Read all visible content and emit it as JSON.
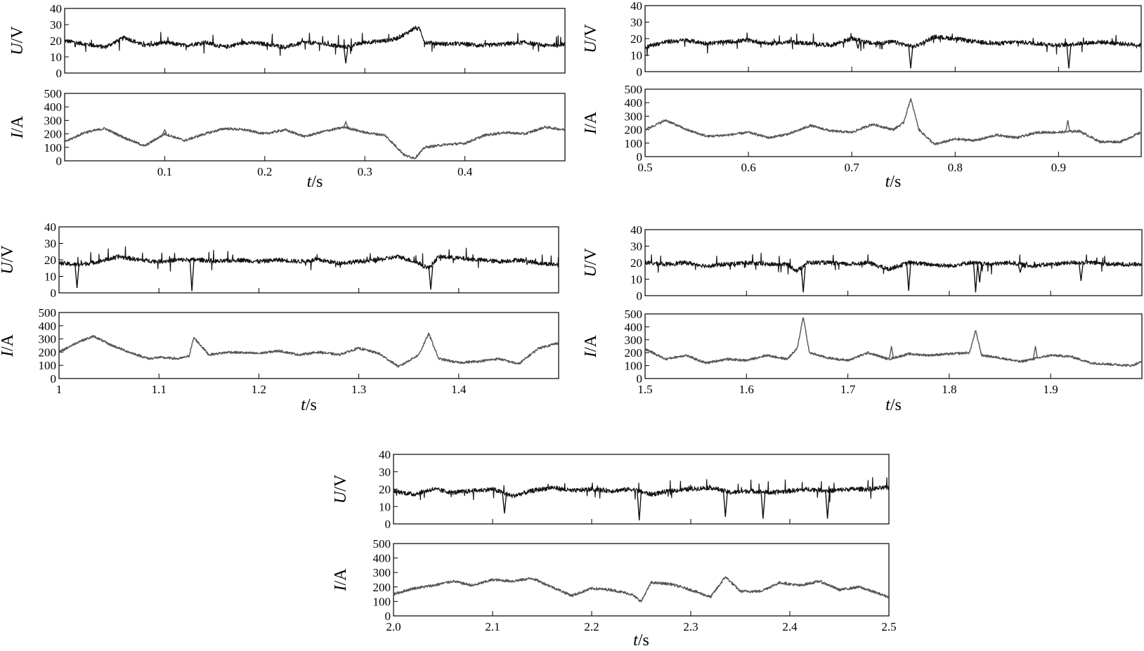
{
  "chart_data": [
    {
      "type": "line",
      "panel": "a",
      "x_range": [
        0,
        0.5
      ],
      "x_ticks": [
        "0.1",
        "0.2",
        "0.3",
        "0.4"
      ],
      "x_tick_values": [
        0.1,
        0.2,
        0.3,
        0.4
      ],
      "xlabel": "t/s",
      "voltage": {
        "ylabel": "U/V",
        "ylim": [
          0,
          40
        ],
        "yticks": [
          "0",
          "10",
          "20",
          "30",
          "40"
        ],
        "ytick_values": [
          0,
          10,
          20,
          30,
          40
        ],
        "x": [
          0,
          0.02,
          0.04,
          0.06,
          0.08,
          0.1,
          0.12,
          0.14,
          0.16,
          0.18,
          0.2,
          0.22,
          0.24,
          0.26,
          0.28,
          0.3,
          0.32,
          0.33,
          0.34,
          0.35,
          0.355,
          0.36,
          0.38,
          0.4,
          0.42,
          0.44,
          0.46,
          0.48,
          0.5
        ],
        "y": [
          20,
          18,
          16,
          22,
          17,
          19,
          17,
          19,
          16,
          19,
          18,
          16,
          19,
          18,
          16,
          19,
          20,
          21,
          24,
          28,
          27,
          19,
          18,
          18,
          17,
          18,
          19,
          17,
          18
        ],
        "dips": [
          [
            0.281,
            6
          ],
          [
            0.412,
            16
          ],
          [
            0.092,
            17
          ]
        ]
      },
      "current": {
        "ylabel": "I/A",
        "ylim": [
          0,
          500
        ],
        "yticks": [
          "0",
          "100",
          "200",
          "300",
          "400",
          "500"
        ],
        "ytick_values": [
          0,
          100,
          200,
          300,
          400,
          500
        ],
        "x": [
          0,
          0.02,
          0.04,
          0.06,
          0.08,
          0.1,
          0.12,
          0.14,
          0.16,
          0.18,
          0.2,
          0.22,
          0.24,
          0.26,
          0.28,
          0.3,
          0.32,
          0.34,
          0.35,
          0.36,
          0.38,
          0.4,
          0.42,
          0.44,
          0.46,
          0.48,
          0.5
        ],
        "y": [
          140,
          210,
          240,
          170,
          110,
          200,
          150,
          200,
          240,
          230,
          200,
          230,
          180,
          220,
          250,
          210,
          190,
          40,
          20,
          100,
          120,
          130,
          190,
          210,
          200,
          250,
          230
        ],
        "peaks": [
          [
            0.281,
            290
          ],
          [
            0.1,
            230
          ]
        ]
      }
    },
    {
      "type": "line",
      "panel": "b",
      "x_range": [
        0.5,
        0.98
      ],
      "x_ticks": [
        "0.5",
        "0.6",
        "0.7",
        "0.8",
        "0.9"
      ],
      "x_tick_values": [
        0.5,
        0.6,
        0.7,
        0.8,
        0.9
      ],
      "xlabel": "t/s",
      "voltage": {
        "ylabel": "U/V",
        "ylim": [
          0,
          40
        ],
        "yticks": [
          "0",
          "10",
          "20",
          "30",
          "40"
        ],
        "ytick_values": [
          0,
          10,
          20,
          30,
          40
        ],
        "x": [
          0.5,
          0.52,
          0.54,
          0.56,
          0.58,
          0.6,
          0.62,
          0.64,
          0.66,
          0.68,
          0.7,
          0.72,
          0.74,
          0.76,
          0.78,
          0.8,
          0.82,
          0.84,
          0.86,
          0.88,
          0.9,
          0.92,
          0.94,
          0.96,
          0.98
        ],
        "y": [
          15,
          18,
          19,
          17,
          18,
          19,
          17,
          18,
          17,
          16,
          20,
          17,
          18,
          15,
          21,
          20,
          18,
          17,
          18,
          17,
          16,
          17,
          18,
          17,
          16
        ],
        "dips": [
          [
            0.757,
            2
          ],
          [
            0.91,
            2
          ],
          [
            0.706,
            14
          ]
        ]
      },
      "current": {
        "ylabel": "I/A",
        "ylim": [
          0,
          500
        ],
        "yticks": [
          "0",
          "100",
          "200",
          "300",
          "400",
          "500"
        ],
        "ytick_values": [
          0,
          100,
          200,
          300,
          400,
          500
        ],
        "x": [
          0.5,
          0.52,
          0.54,
          0.56,
          0.58,
          0.6,
          0.62,
          0.64,
          0.66,
          0.68,
          0.7,
          0.72,
          0.74,
          0.75,
          0.757,
          0.765,
          0.78,
          0.8,
          0.82,
          0.84,
          0.86,
          0.88,
          0.9,
          0.92,
          0.94,
          0.96,
          0.98
        ],
        "y": [
          200,
          270,
          200,
          150,
          160,
          180,
          140,
          170,
          230,
          190,
          180,
          240,
          200,
          250,
          430,
          200,
          90,
          130,
          120,
          160,
          140,
          180,
          180,
          190,
          110,
          110,
          180
        ],
        "peaks": [
          [
            0.909,
            270
          ]
        ]
      }
    },
    {
      "type": "line",
      "panel": "c",
      "x_range": [
        1.0,
        1.5
      ],
      "x_ticks": [
        "1",
        "1.1",
        "1.2",
        "1.3",
        "1.4"
      ],
      "x_tick_values": [
        1.0,
        1.1,
        1.2,
        1.3,
        1.4
      ],
      "xlabel": "t/s",
      "voltage": {
        "ylabel": "U/V",
        "ylim": [
          0,
          40
        ],
        "yticks": [
          "0",
          "10",
          "20",
          "30",
          "40"
        ],
        "ytick_values": [
          0,
          10,
          20,
          30,
          40
        ],
        "x": [
          1.0,
          1.02,
          1.04,
          1.06,
          1.08,
          1.1,
          1.12,
          1.14,
          1.16,
          1.18,
          1.2,
          1.22,
          1.24,
          1.26,
          1.28,
          1.3,
          1.32,
          1.34,
          1.36,
          1.37,
          1.38,
          1.4,
          1.42,
          1.44,
          1.46,
          1.48,
          1.5
        ],
        "y": [
          18,
          17,
          19,
          22,
          20,
          19,
          20,
          20,
          19,
          20,
          19,
          20,
          19,
          20,
          18,
          19,
          20,
          22,
          18,
          15,
          22,
          21,
          20,
          19,
          20,
          18,
          17
        ],
        "dips": [
          [
            1.018,
            3
          ],
          [
            1.133,
            1
          ],
          [
            1.372,
            2
          ]
        ]
      },
      "current": {
        "ylabel": "I/A",
        "ylim": [
          0,
          500
        ],
        "yticks": [
          "0",
          "100",
          "200",
          "300",
          "400",
          "500"
        ],
        "ytick_values": [
          0,
          100,
          200,
          300,
          400,
          500
        ],
        "x": [
          1.0,
          1.02,
          1.035,
          1.05,
          1.07,
          1.09,
          1.1,
          1.12,
          1.13,
          1.135,
          1.15,
          1.17,
          1.2,
          1.22,
          1.24,
          1.26,
          1.28,
          1.3,
          1.32,
          1.34,
          1.36,
          1.37,
          1.38,
          1.4,
          1.42,
          1.44,
          1.46,
          1.48,
          1.5
        ],
        "y": [
          200,
          280,
          320,
          260,
          200,
          150,
          160,
          150,
          170,
          310,
          180,
          200,
          190,
          210,
          180,
          200,
          180,
          230,
          190,
          90,
          180,
          340,
          150,
          120,
          130,
          150,
          110,
          230,
          270
        ],
        "peaks": []
      }
    },
    {
      "type": "line",
      "panel": "d",
      "x_range": [
        1.5,
        1.99
      ],
      "x_ticks": [
        "1.5",
        "1.6",
        "1.7",
        "1.8",
        "1.9"
      ],
      "x_tick_values": [
        1.5,
        1.6,
        1.7,
        1.8,
        1.9
      ],
      "xlabel": "t/s",
      "voltage": {
        "ylabel": "U/V",
        "ylim": [
          0,
          40
        ],
        "yticks": [
          "0",
          "10",
          "20",
          "30",
          "40"
        ],
        "ytick_values": [
          0,
          10,
          20,
          30,
          40
        ],
        "x": [
          1.5,
          1.52,
          1.54,
          1.56,
          1.58,
          1.6,
          1.62,
          1.64,
          1.65,
          1.66,
          1.68,
          1.7,
          1.72,
          1.74,
          1.76,
          1.78,
          1.8,
          1.82,
          1.84,
          1.86,
          1.88,
          1.9,
          1.92,
          1.94,
          1.96,
          1.99
        ],
        "y": [
          20,
          19,
          20,
          18,
          19,
          20,
          19,
          19,
          15,
          20,
          20,
          19,
          20,
          16,
          20,
          19,
          18,
          20,
          19,
          20,
          18,
          19,
          20,
          20,
          19,
          19
        ],
        "dips": [
          [
            1.656,
            2
          ],
          [
            1.76,
            3
          ],
          [
            1.826,
            2
          ],
          [
            1.83,
            8
          ],
          [
            1.93,
            9
          ],
          [
            1.87,
            14
          ]
        ]
      },
      "current": {
        "ylabel": "I/A",
        "ylim": [
          0,
          500
        ],
        "yticks": [
          "0",
          "100",
          "200",
          "300",
          "400",
          "500"
        ],
        "ytick_values": [
          0,
          100,
          200,
          300,
          400,
          500
        ],
        "x": [
          1.5,
          1.52,
          1.54,
          1.56,
          1.58,
          1.6,
          1.62,
          1.64,
          1.65,
          1.656,
          1.662,
          1.68,
          1.7,
          1.72,
          1.74,
          1.76,
          1.78,
          1.8,
          1.82,
          1.826,
          1.832,
          1.85,
          1.87,
          1.9,
          1.92,
          1.94,
          1.96,
          1.98,
          1.99
        ],
        "y": [
          230,
          150,
          180,
          120,
          150,
          140,
          180,
          150,
          230,
          480,
          200,
          160,
          140,
          200,
          150,
          190,
          180,
          190,
          200,
          370,
          180,
          160,
          130,
          180,
          170,
          120,
          110,
          100,
          130
        ],
        "peaks": [
          [
            1.743,
            250
          ],
          [
            1.885,
            250
          ]
        ]
      }
    },
    {
      "type": "line",
      "panel": "e",
      "x_range": [
        2.0,
        2.5
      ],
      "x_ticks": [
        "2.0",
        "2.1",
        "2.2",
        "2.3",
        "2.4",
        "2.5"
      ],
      "x_tick_values": [
        2.0,
        2.1,
        2.2,
        2.3,
        2.4,
        2.5
      ],
      "xlabel": "t/s",
      "voltage": {
        "ylabel": "U/V",
        "ylim": [
          0,
          40
        ],
        "yticks": [
          "0",
          "10",
          "20",
          "30",
          "40"
        ],
        "ytick_values": [
          0,
          10,
          20,
          30,
          40
        ],
        "x": [
          2.0,
          2.02,
          2.04,
          2.06,
          2.08,
          2.1,
          2.12,
          2.14,
          2.16,
          2.18,
          2.2,
          2.22,
          2.24,
          2.26,
          2.28,
          2.3,
          2.32,
          2.34,
          2.36,
          2.38,
          2.4,
          2.42,
          2.44,
          2.46,
          2.48,
          2.5
        ],
        "y": [
          19,
          17,
          20,
          18,
          19,
          20,
          16,
          19,
          21,
          19,
          20,
          19,
          20,
          17,
          19,
          20,
          21,
          18,
          19,
          18,
          19,
          20,
          19,
          20,
          20,
          21
        ],
        "dips": [
          [
            2.112,
            6
          ],
          [
            2.248,
            2
          ],
          [
            2.335,
            4
          ],
          [
            2.373,
            3
          ],
          [
            2.438,
            3
          ]
        ]
      },
      "current": {
        "ylabel": "I/A",
        "ylim": [
          0,
          500
        ],
        "yticks": [
          "0",
          "100",
          "200",
          "300",
          "400",
          "500"
        ],
        "ytick_values": [
          0,
          100,
          200,
          300,
          400,
          500
        ],
        "x": [
          2.0,
          2.02,
          2.04,
          2.06,
          2.08,
          2.1,
          2.12,
          2.14,
          2.16,
          2.18,
          2.2,
          2.22,
          2.24,
          2.25,
          2.26,
          2.28,
          2.3,
          2.32,
          2.335,
          2.35,
          2.37,
          2.39,
          2.41,
          2.43,
          2.45,
          2.47,
          2.5
        ],
        "y": [
          150,
          190,
          210,
          240,
          210,
          250,
          240,
          260,
          200,
          140,
          190,
          180,
          150,
          100,
          230,
          220,
          180,
          130,
          270,
          170,
          170,
          230,
          210,
          240,
          180,
          200,
          130
        ],
        "peaks": []
      }
    }
  ]
}
